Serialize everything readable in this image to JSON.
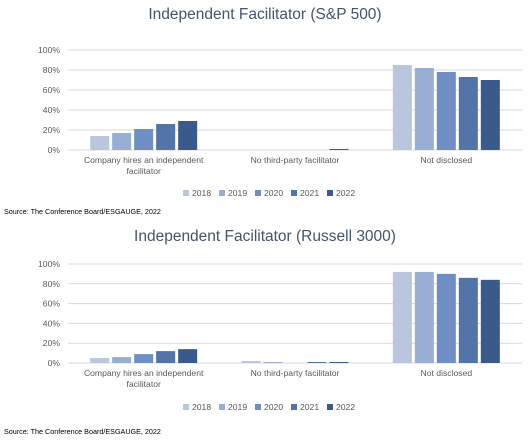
{
  "colors": {
    "2018": "#b9c6de",
    "2019": "#98aed3",
    "2020": "#6f8fc4",
    "2021": "#5274a8",
    "2022": "#3b5a8c",
    "title": "#44546a",
    "grid": "#d9d9d9"
  },
  "chart_data": [
    {
      "type": "bar",
      "title": "Independent Facilitator (S&P 500)",
      "source": "Source: The Conference Board/ESGAUGE, 2022",
      "categories": [
        [
          "Company hires an independent",
          "facilitator"
        ],
        [
          "No third-party facilitator"
        ],
        [
          "Not disclosed"
        ]
      ],
      "series": [
        {
          "name": "2018",
          "values": [
            14,
            0,
            85
          ]
        },
        {
          "name": "2019",
          "values": [
            17,
            0,
            82
          ]
        },
        {
          "name": "2020",
          "values": [
            21,
            0,
            78
          ]
        },
        {
          "name": "2021",
          "values": [
            26,
            0,
            73
          ]
        },
        {
          "name": "2022",
          "values": [
            29,
            1,
            70
          ]
        }
      ],
      "yticks": [
        "0%",
        "20%",
        "40%",
        "60%",
        "80%",
        "100%"
      ],
      "ylim": [
        0,
        100
      ],
      "grid": true,
      "legend": "bottom"
    },
    {
      "type": "bar",
      "title": "Independent Facilitator (Russell 3000)",
      "source": "Source: The Conference Board/ESGAUGE, 2022",
      "categories": [
        [
          "Company hires an independent",
          "facilitator"
        ],
        [
          "No third-party facilitator"
        ],
        [
          "Not disclosed"
        ]
      ],
      "series": [
        {
          "name": "2018",
          "values": [
            5,
            2,
            92
          ]
        },
        {
          "name": "2019",
          "values": [
            6,
            1,
            92
          ]
        },
        {
          "name": "2020",
          "values": [
            9,
            0,
            90
          ]
        },
        {
          "name": "2021",
          "values": [
            12,
            1,
            86
          ]
        },
        {
          "name": "2022",
          "values": [
            14,
            1,
            84
          ]
        }
      ],
      "yticks": [
        "0%",
        "20%",
        "40%",
        "60%",
        "80%",
        "100%"
      ],
      "ylim": [
        0,
        100
      ],
      "grid": true,
      "legend": "bottom"
    }
  ]
}
